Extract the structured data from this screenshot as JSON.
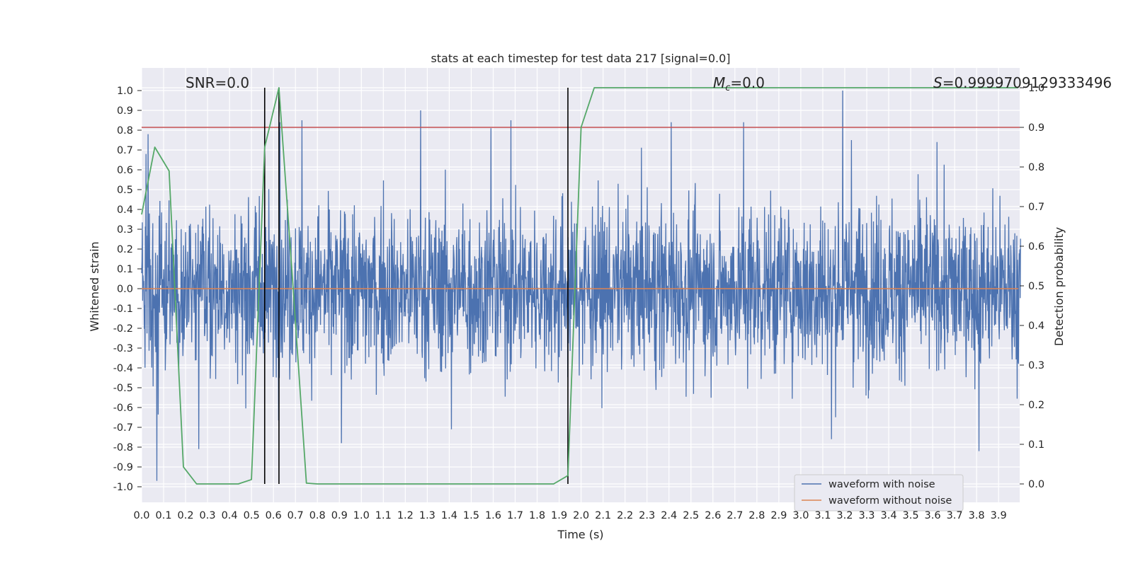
{
  "chart_data": {
    "type": "line",
    "title": "stats at each timestep for test data 217 [signal=0.0]",
    "xlabel": "Time (s)",
    "ylabel": "Whitened strain",
    "y2label": "Detection probability",
    "xlim": [
      0.0,
      4.0
    ],
    "ylim": [
      -1.1,
      1.1
    ],
    "y2lim": [
      -0.05,
      1.05
    ],
    "grid": true,
    "legend_position": "bottom-right",
    "x_ticks": [
      "0.0",
      "0.1",
      "0.2",
      "0.3",
      "0.4",
      "0.5",
      "0.6",
      "0.7",
      "0.8",
      "0.9",
      "1.0",
      "1.1",
      "1.2",
      "1.3",
      "1.4",
      "1.5",
      "1.6",
      "1.7",
      "1.8",
      "1.9",
      "2.0",
      "2.1",
      "2.2",
      "2.3",
      "2.4",
      "2.5",
      "2.6",
      "2.7",
      "2.8",
      "2.9",
      "3.0",
      "3.1",
      "3.2",
      "3.3",
      "3.4",
      "3.5",
      "3.6",
      "3.7",
      "3.8",
      "3.9"
    ],
    "y_ticks": [
      "1.0",
      "0.9",
      "0.8",
      "0.7",
      "0.6",
      "0.5",
      "0.4",
      "0.3",
      "0.2",
      "0.1",
      "0.0",
      "-0.1",
      "-0.2",
      "-0.3",
      "-0.4",
      "-0.5",
      "-0.6",
      "-0.7",
      "-0.8",
      "-0.9",
      "-1.0"
    ],
    "y2_ticks": [
      "1.0",
      "0.9",
      "0.8",
      "0.7",
      "0.6",
      "0.5",
      "0.4",
      "0.3",
      "0.2",
      "0.1",
      "0.0"
    ],
    "annotations": {
      "snr": "SNR=0.0",
      "mc_symbol": "M",
      "mc_sub": "c",
      "mc_value": "=0.0",
      "s_symbol": "S",
      "s_value": "=0.9999709129333496"
    },
    "series": [
      {
        "name": "waveform with noise",
        "color": "#4c72b0",
        "noise": true,
        "x_range": [
          0.0,
          4.0
        ],
        "typical_amplitude": 0.4,
        "peaks": [
          {
            "x": 0.02,
            "y": 0.68
          },
          {
            "x": 0.03,
            "y": 0.78
          },
          {
            "x": 0.07,
            "y": -0.97
          },
          {
            "x": 0.26,
            "y": -0.81
          },
          {
            "x": 0.63,
            "y": 0.84
          },
          {
            "x": 0.73,
            "y": 0.85
          },
          {
            "x": 1.27,
            "y": 0.9
          },
          {
            "x": 1.59,
            "y": 0.81
          },
          {
            "x": 1.68,
            "y": 0.85
          },
          {
            "x": 0.91,
            "y": -0.78
          },
          {
            "x": 1.41,
            "y": -0.71
          },
          {
            "x": 2.41,
            "y": 0.84
          },
          {
            "x": 2.74,
            "y": 0.84
          },
          {
            "x": 3.19,
            "y": 1.0
          },
          {
            "x": 3.14,
            "y": -0.76
          },
          {
            "x": 3.81,
            "y": -0.82
          },
          {
            "x": 3.62,
            "y": 0.74
          },
          {
            "x": 3.23,
            "y": 0.75
          }
        ]
      },
      {
        "name": "waveform without noise",
        "color": "#dd8452",
        "x": [
          0.0,
          3.99
        ],
        "y": [
          0.0,
          0.0
        ]
      },
      {
        "name": "detection probability",
        "color": "#55a868",
        "axis": "right",
        "x": [
          0.0,
          0.06,
          0.125,
          0.19,
          0.25,
          0.44,
          0.5,
          0.56,
          0.625,
          0.69,
          0.75,
          0.8,
          1.875,
          1.94,
          2.0,
          2.06,
          3.99
        ],
        "y": [
          0.68,
          0.85,
          0.79,
          0.043,
          0.0,
          0.0,
          0.011,
          0.85,
          1.0,
          0.49,
          0.002,
          0.0,
          0.0,
          0.021,
          0.9,
          1.0,
          1.0
        ]
      }
    ],
    "threshold_line": {
      "y2": 0.9,
      "color": "#c44e52"
    },
    "vertical_lines": {
      "x": [
        0.56,
        0.625,
        1.94
      ],
      "color": "#000000",
      "y2_range": [
        0.0,
        1.0
      ]
    }
  }
}
